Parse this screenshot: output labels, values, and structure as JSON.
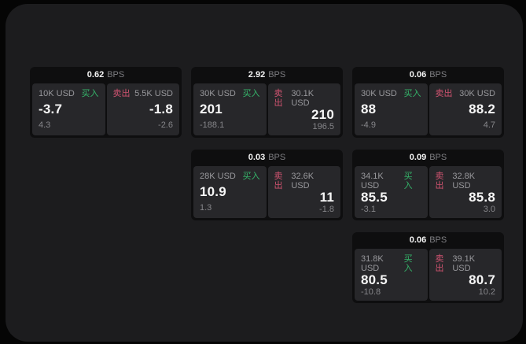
{
  "colors": {
    "outer_bg": "#050505",
    "panel_bg": "#1c1c1e",
    "card_bg": "#0e0e0f",
    "tile_bg": "#27272a",
    "buy_green": "#35b56a",
    "sell_red": "#cf5370"
  },
  "labels": {
    "bps_unit": "BPS",
    "buy": "买入",
    "sell": "卖出"
  },
  "cards": [
    {
      "bps": "0.62",
      "buy": {
        "size": "10K USD",
        "value": "-3.7",
        "sub": "4.3"
      },
      "sell": {
        "size": "5.5K USD",
        "value": "-1.8",
        "sub": "-2.6"
      }
    },
    {
      "bps": "2.92",
      "buy": {
        "size": "30K USD",
        "value": "201",
        "sub": "-188.1"
      },
      "sell": {
        "size": "30.1K USD",
        "value": "210",
        "sub": "196.5"
      }
    },
    {
      "bps": "0.06",
      "buy": {
        "size": "30K USD",
        "value": "88",
        "sub": "-4.9"
      },
      "sell": {
        "size": "30K USD",
        "value": "88.2",
        "sub": "4.7"
      }
    },
    {
      "bps": "0.03",
      "buy": {
        "size": "28K USD",
        "value": "10.9",
        "sub": "1.3"
      },
      "sell": {
        "size": "32.6K USD",
        "value": "11",
        "sub": "-1.8"
      }
    },
    {
      "bps": "0.09",
      "buy": {
        "size": "34.1K USD",
        "value": "85.5",
        "sub": "-3.1"
      },
      "sell": {
        "size": "32.8K USD",
        "value": "85.8",
        "sub": "3.0"
      }
    },
    {
      "bps": "0.06",
      "buy": {
        "size": "31.8K USD",
        "value": "80.5",
        "sub": "-10.8"
      },
      "sell": {
        "size": "39.1K USD",
        "value": "80.7",
        "sub": "10.2"
      }
    }
  ]
}
